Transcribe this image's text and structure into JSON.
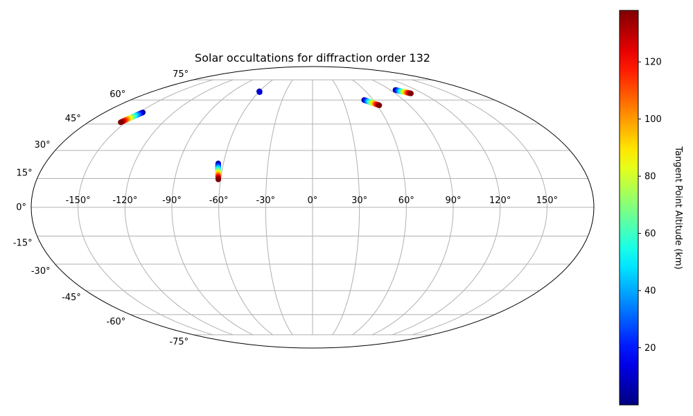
{
  "chart_data": {
    "type": "scatter",
    "projection": "mollweide",
    "title": "Solar occultations for diffraction order 132",
    "xlabel": "",
    "ylabel": "",
    "x_range": [
      -180,
      180
    ],
    "y_range": [
      -90,
      90
    ],
    "grid": true,
    "longitude_ticks": [
      "-150°",
      "-120°",
      "-90°",
      "-60°",
      "-30°",
      "0°",
      "30°",
      "60°",
      "90°",
      "120°",
      "150°"
    ],
    "latitude_ticks": [
      "75°",
      "60°",
      "45°",
      "30°",
      "15°",
      "0°",
      "-15°",
      "-30°",
      "-45°",
      "-60°",
      "-75°"
    ],
    "longitude_tick_values": [
      -150,
      -120,
      -90,
      -60,
      -30,
      0,
      30,
      60,
      90,
      120,
      150
    ],
    "latitude_tick_values": [
      75,
      60,
      45,
      30,
      15,
      0,
      -15,
      -30,
      -45,
      -60,
      -75
    ],
    "colormap": "jet",
    "color_range": [
      0,
      138
    ],
    "colorbar_label": "Tangent Point Altitude (km)",
    "colorbar_ticks": [
      "20",
      "40",
      "60",
      "80",
      "100",
      "120"
    ],
    "colorbar_tick_values": [
      20,
      40,
      60,
      80,
      100,
      120
    ],
    "tracks": [
      {
        "lon_start": -147,
        "lat_start": 52,
        "lon_end": -154,
        "lat_end": 46,
        "alt_min": 0,
        "alt_max": 138
      },
      {
        "lon_start": -60,
        "lat_start": 66,
        "lon_end": -59,
        "lat_end": 65.5,
        "alt_min": 0,
        "alt_max": 12
      },
      {
        "lon_start": -63.5,
        "lat_start": 23,
        "lon_end": -61.5,
        "lat_end": 14.5,
        "alt_min": 0,
        "alt_max": 138
      },
      {
        "lon_start": 51,
        "lat_start": 60,
        "lon_end": 62,
        "lat_end": 56.5,
        "alt_min": 0,
        "alt_max": 138
      },
      {
        "lon_start": 96,
        "lat_start": 67,
        "lon_end": 107,
        "lat_end": 64.5,
        "alt_min": 0,
        "alt_max": 138
      }
    ]
  }
}
